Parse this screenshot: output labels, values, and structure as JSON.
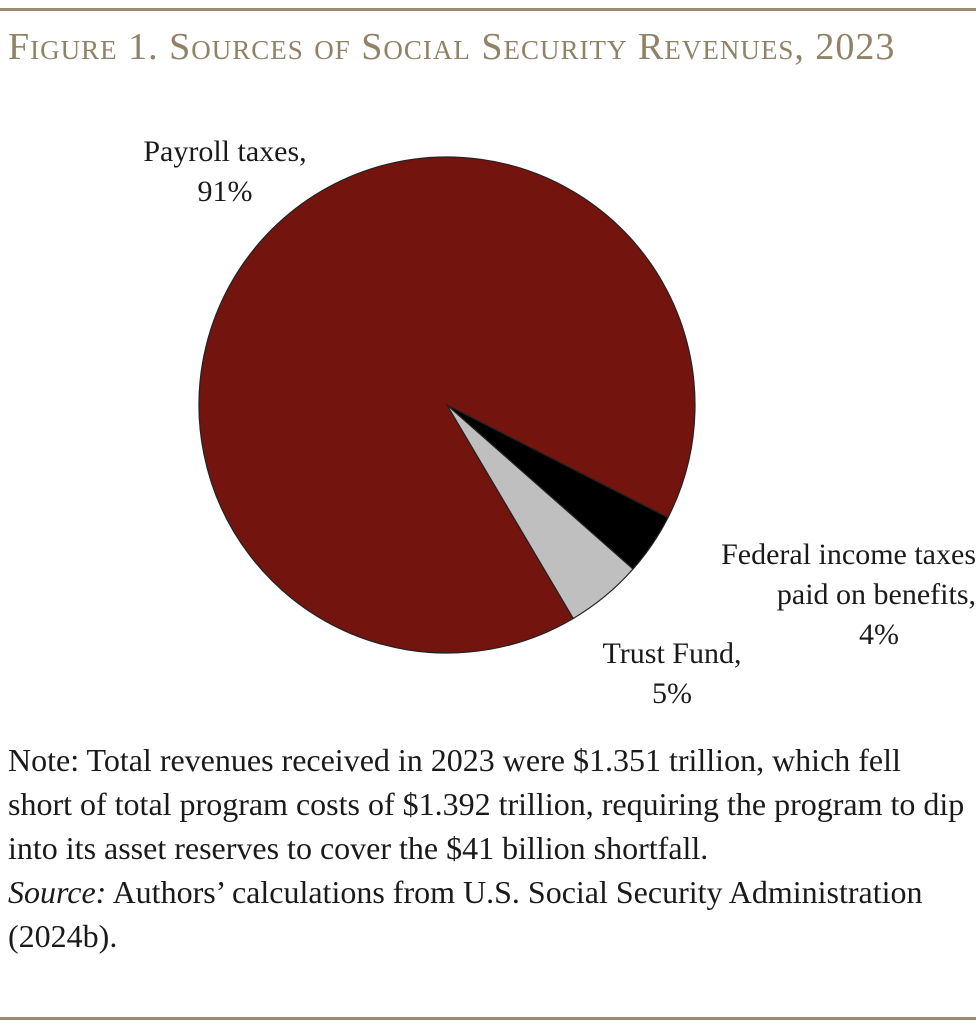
{
  "title": "Figure 1. Sources of Social Security Revenues, 2023",
  "chart_data": {
    "type": "pie",
    "title": "Figure 1. Sources of Social Security Revenues, 2023",
    "slices": [
      {
        "name": "Payroll taxes",
        "value": 91,
        "label": "91%",
        "color": "#74140f"
      },
      {
        "name": "Federal income taxes paid on benefits",
        "value": 4,
        "label": "4%",
        "color": "#000000"
      },
      {
        "name": "Trust Fund",
        "value": 5,
        "label": "5%",
        "color": "#bfbfbf"
      }
    ]
  },
  "labels": {
    "payroll_name": "Payroll taxes,",
    "payroll_pct": "91%",
    "federal_line1": "Federal income taxes",
    "federal_line2": "paid on benefits,",
    "federal_pct": "4%",
    "trust_name": "Trust Fund,",
    "trust_pct": "5%"
  },
  "note": {
    "text": "Note: Total revenues received in 2023 were $1.351 trillion, which fell short of total program costs of $1.392 trillion, requiring the program to dip into its asset reserves to cover the $41 billion shortfall.",
    "source_label": "Source:",
    "source_text": " Authors’ calculations from U.S. Social Security Administration (2024b)."
  }
}
